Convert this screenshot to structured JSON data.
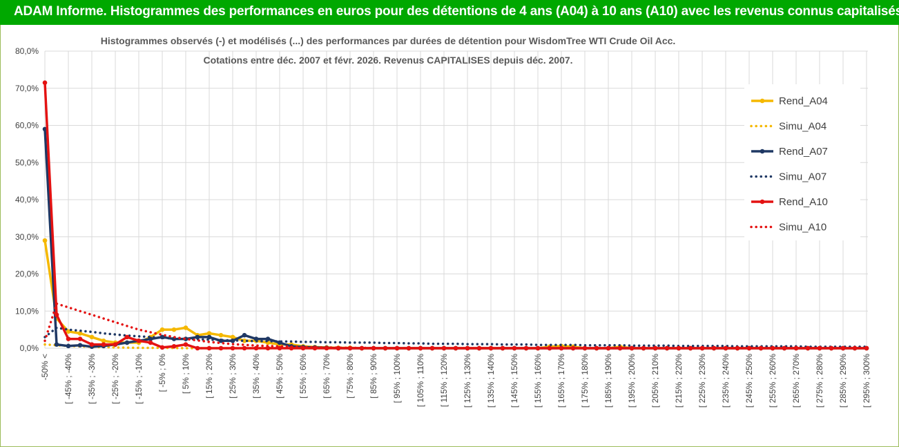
{
  "header": {
    "title": "ADAM Informe. Histogrammes des performances en euros pour des détentions de 4 ans (A04) à 10 ans (A10) avec les revenus connus capitalisés"
  },
  "colors": {
    "header_bg": "#00a800",
    "A04": "#f5b800",
    "A07": "#1f3864",
    "A10": "#e41212",
    "grid": "#d9d9d9",
    "border": "#9bbb59"
  },
  "chart_data": {
    "type": "line",
    "title_line1": "Histogrammes observés (-) et modélisés (...) des performances par durées de détention pour WisdomTree WTI Crude Oil Acc.",
    "title_line2": "Cotations entre déc. 2007 et févr. 2026. Revenus CAPITALISES depuis déc. 2007.",
    "ylim": [
      0,
      80
    ],
    "yticks": [
      "0,0%",
      "10,0%",
      "20,0%",
      "30,0%",
      "40,0%",
      "50,0%",
      "60,0%",
      "70,0%",
      "80,0%"
    ],
    "grid": true,
    "legend_position": "right",
    "categories": [
      "-50% <",
      "[ -50% ; -45%",
      "[ -45% ; -40%",
      "[ -40% ; -35%",
      "[ -35% ; -30%",
      "[ -30% ; -25%",
      "[ -25% ; -20%",
      "[ -20% ; -15%",
      "[ -15% ; -10%",
      "[ -10% ; -5%",
      "[ -5% ; 0%",
      "[ 0% ; 5%",
      "[ 5% ; 10%",
      "[ 10% ; 15%",
      "[ 15% ; 20%",
      "[ 20% ; 25%",
      "[ 25% ; 30%",
      "[ 30% ; 35%",
      "[ 35% ; 40%",
      "[ 40% ; 45%",
      "[ 45% ; 50%",
      "[ 50% ; 55%",
      "[ 55% ; 60%",
      "[ 60% ; 65%",
      "[ 65% ; 70%",
      "[ 70% ; 75%",
      "[ 75% ; 80%",
      "[ 80% ; 85%",
      "[ 85% ; 90%",
      "[ 90% ; 95%",
      "[ 95% ; 100%",
      "[ 100% ; 105%",
      "[ 105% ; 110%",
      "[ 110% ; 115%",
      "[ 115% ; 120%",
      "[ 120% ; 125%",
      "[ 125% ; 130%",
      "[ 130% ; 135%",
      "[ 135% ; 140%",
      "[ 140% ; 145%",
      "[ 145% ; 150%",
      "[ 150% ; 155%",
      "[ 155% ; 160%",
      "[ 160% ; 165%",
      "[ 165% ; 170%",
      "[ 170% ; 175%",
      "[ 175% ; 180%",
      "[ 180% ; 185%",
      "[ 185% ; 190%",
      "[ 190% ; 195%",
      "[ 195% ; 200%",
      "[ 200% ; 205%",
      "[ 205% ; 210%",
      "[ 210% ; 215%",
      "[ 215% ; 220%",
      "[ 220% ; 225%",
      "[ 225% ; 230%",
      "[ 230% ; 235%",
      "[ 235% ; 240%",
      "[ 240% ; 245%",
      "[ 245% ; 250%",
      "[ 250% ; 255%",
      "[ 255% ; 260%",
      "[ 260% ; 265%",
      "[ 265% ; 270%",
      "[ 270% ; 275%",
      "[ 275% ; 280%",
      "[ 280% ; 285%",
      "[ 285% ; 290%",
      "[ 290% ; 295%",
      "[ 295% ; 300%"
    ],
    "series": [
      {
        "name": "Rend_A04",
        "style": "solid",
        "color": "#f5b800",
        "values": [
          29,
          8,
          4.5,
          4,
          3,
          2,
          1.5,
          1.5,
          1.5,
          3,
          5,
          5,
          5.5,
          3.5,
          4,
          3.5,
          3,
          2,
          2,
          1.5,
          1,
          1,
          0.5,
          0.3,
          0.2,
          0.1,
          0.1,
          0,
          0,
          0,
          0,
          0,
          0,
          0,
          0,
          0,
          0,
          0,
          0,
          0,
          0,
          0,
          0,
          0.4,
          0.6,
          0.4,
          0,
          0,
          0,
          0.4,
          0,
          0,
          0,
          0,
          0,
          0,
          0,
          0,
          0,
          0,
          0,
          0,
          0,
          0,
          0,
          0,
          0,
          0,
          0,
          0,
          0
        ]
      },
      {
        "name": "Simu_A04",
        "style": "dotted",
        "color": "#f5b800",
        "values": [
          1,
          0.8,
          0.6,
          0.5,
          0.4,
          0.3,
          0.2,
          0.15,
          0.1,
          0.1,
          0.1,
          0.05,
          0,
          0,
          0,
          0,
          0,
          0,
          0,
          0,
          0,
          0,
          0,
          0,
          0,
          0,
          0,
          0,
          0,
          0,
          0,
          0,
          0,
          0,
          0,
          0,
          0,
          0,
          0,
          0,
          0,
          0,
          0,
          0,
          0,
          0,
          0,
          0,
          0,
          0,
          0,
          0,
          0,
          0,
          0,
          0,
          0,
          0,
          0,
          0,
          0,
          0,
          0,
          0,
          0,
          0,
          0,
          0,
          0,
          0,
          0
        ]
      },
      {
        "name": "Rend_A07",
        "style": "solid",
        "color": "#1f3864",
        "values": [
          59,
          1,
          0.6,
          0.8,
          0.4,
          0.6,
          1,
          1.5,
          2,
          2.5,
          3,
          2.5,
          2.5,
          3,
          3,
          2,
          2,
          3.5,
          2.5,
          2.5,
          1.5,
          0.5,
          0.3,
          0.2,
          0.1,
          0,
          0,
          0,
          0,
          0,
          0,
          0,
          0,
          0,
          0,
          0,
          0,
          0,
          0,
          0,
          0,
          0,
          0,
          0,
          0,
          0,
          0,
          0,
          0,
          0,
          0,
          0,
          0,
          0,
          0,
          0,
          0,
          0,
          0,
          0,
          0,
          0,
          0,
          0,
          0,
          0,
          0,
          0,
          0,
          0,
          0
        ]
      },
      {
        "name": "Simu_A07",
        "style": "dotted",
        "color": "#1f3864",
        "values": [
          3,
          5.5,
          5,
          4.7,
          4.4,
          4,
          3.7,
          3.4,
          3.2,
          3,
          2.8,
          2.6,
          2.5,
          2.4,
          2.3,
          2.2,
          2.1,
          2,
          1.9,
          1.9,
          1.8,
          1.8,
          1.7,
          1.7,
          1.6,
          1.6,
          1.5,
          1.5,
          1.5,
          1.4,
          1.4,
          1.3,
          1.3,
          1.2,
          1.2,
          1.2,
          1.1,
          1.1,
          1.1,
          1,
          1,
          1,
          0.9,
          0.9,
          0.9,
          0.9,
          0.8,
          0.8,
          0.8,
          0.8,
          0.7,
          0.7,
          0.7,
          0.7,
          0.6,
          0.6,
          0.6,
          0.6,
          0.6,
          0.5,
          0.5,
          0.5,
          0.5,
          0.5,
          0.5,
          0.4,
          0.4,
          0.4,
          0.4,
          0.4,
          0.4
        ]
      },
      {
        "name": "Rend_A10",
        "style": "solid",
        "color": "#e41212",
        "values": [
          71.5,
          9,
          2.5,
          2.5,
          1,
          1,
          1,
          3,
          2,
          1.5,
          0.2,
          0.5,
          1,
          0,
          0,
          0,
          0,
          0,
          0,
          0,
          0,
          0,
          0,
          0,
          0,
          0,
          0,
          0,
          0,
          0,
          0,
          0,
          0,
          0,
          0,
          0,
          0,
          0,
          0,
          0,
          0,
          0,
          0,
          0,
          0,
          0,
          0,
          0,
          0,
          0,
          0,
          0,
          0,
          0,
          0,
          0,
          0,
          0,
          0,
          0,
          0,
          0,
          0,
          0,
          0,
          0,
          0,
          0,
          0,
          0,
          0
        ]
      },
      {
        "name": "Simu_A10",
        "style": "dotted",
        "color": "#e41212",
        "values": [
          2,
          12,
          11,
          10,
          9,
          8,
          7,
          6,
          5,
          4.3,
          3.6,
          3,
          2.5,
          2.1,
          1.7,
          1.4,
          1.1,
          0.9,
          0.7,
          0.6,
          0.5,
          0.4,
          0.3,
          0.25,
          0.2,
          0.15,
          0.1,
          0.1,
          0.05,
          0,
          0,
          0,
          0,
          0,
          0,
          0,
          0,
          0,
          0,
          0,
          0,
          0,
          0,
          0,
          0,
          0,
          0,
          0,
          0,
          0,
          0,
          0,
          0,
          0,
          0,
          0,
          0,
          0,
          0,
          0,
          0,
          0,
          0,
          0,
          0,
          0,
          0,
          0,
          0,
          0,
          0
        ]
      }
    ]
  }
}
